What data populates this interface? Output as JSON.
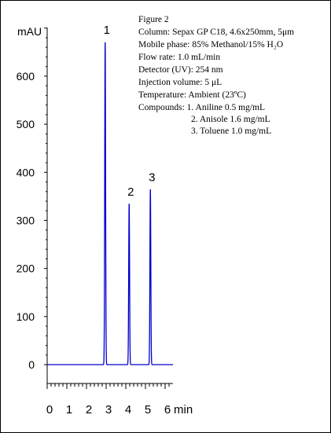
{
  "chart_data": {
    "type": "line",
    "y_unit_label": "mAU",
    "x_unit_label": "min",
    "xlim": [
      0,
      6
    ],
    "ylim": [
      0,
      720
    ],
    "x_ticks": [
      "0",
      "1",
      "2",
      "3",
      "4",
      "5",
      "6"
    ],
    "y_ticks": [
      "0",
      "100",
      "200",
      "300",
      "400",
      "500",
      "600"
    ],
    "series": [
      {
        "color": "#0000cc",
        "peaks": [
          {
            "label": "1",
            "time": 2.95,
            "height": 672
          },
          {
            "label": "2",
            "time": 4.17,
            "height": 335
          },
          {
            "label": "3",
            "time": 5.25,
            "height": 365
          }
        ]
      }
    ],
    "grid": false,
    "legend": null
  },
  "annotation": {
    "lines": [
      "Figure 2",
      "Column: Sepax GP C18, 4.6x250mm, 5μm",
      "Mobile phase: 85% Methanol/15% H₂O",
      "Flow rate: 1.0 mL/min",
      "Detector (UV): 254 nm",
      "Injection volume: 5 μL",
      "Temperature: Ambient (23ºC)",
      "Compounds: 1. Aniline 0.5 mg/mL",
      "2. Anisole 1.6 mg/mL",
      "3. Toluene 1.0 mg/mL"
    ]
  }
}
